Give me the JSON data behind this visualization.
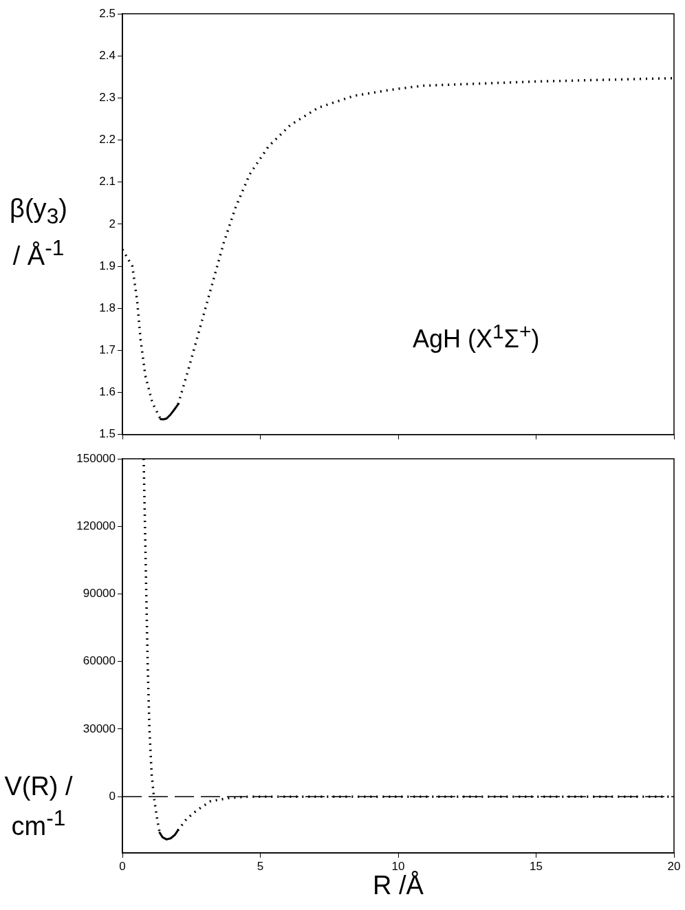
{
  "chart_data": [
    {
      "type": "line",
      "ylabel": "β(y$_{3}$) / Å$^{-1}$",
      "xlim": [
        0,
        20
      ],
      "xticks": [
        0,
        5,
        10,
        15,
        20
      ],
      "ylim": [
        1.5,
        2.5
      ],
      "yticks": [
        1.5,
        1.6,
        1.7,
        1.8,
        1.9,
        2,
        2.1,
        2.2,
        2.3,
        2.4,
        2.5
      ],
      "tick_labels": "y",
      "annotations": [
        "AgH (X$^{1}$Σ$^{+}$)"
      ],
      "series": [
        {
          "color": "#000000",
          "line_style": "dotted",
          "x": [
            0,
            0.36,
            0.53,
            0.66,
            0.83,
            1.09,
            1.38
          ],
          "values": [
            1.94,
            1.9,
            1.82,
            1.725,
            1.64,
            1.575,
            1.537
          ]
        },
        {
          "color": "#000000",
          "line_style": "dotted",
          "x": [
            2.02,
            2.38,
            2.81,
            3.24,
            3.67,
            4.1,
            4.61,
            5.3,
            6.08,
            7.11,
            8.4,
            9.69,
            10.89,
            15,
            20
          ],
          "values": [
            1.572,
            1.652,
            1.753,
            1.854,
            1.955,
            2.039,
            2.118,
            2.185,
            2.235,
            2.277,
            2.305,
            2.319,
            2.329,
            2.339,
            2.347
          ]
        },
        {
          "color": "#000000",
          "line_style": "solid",
          "x": [
            1.38,
            1.48,
            1.6,
            1.75,
            1.9,
            2.02
          ],
          "values": [
            1.537,
            1.536,
            1.538,
            1.548,
            1.561,
            1.572
          ]
        }
      ]
    },
    {
      "type": "line",
      "xlabel": "R /Å",
      "ylabel": "V(R) / cm$^{-1}$",
      "xlim": [
        0,
        20
      ],
      "xticks": [
        0,
        5,
        10,
        15,
        20
      ],
      "ylim": [
        -25000,
        150000
      ],
      "yticks": [
        0,
        30000,
        60000,
        90000,
        120000,
        150000
      ],
      "ref_lines": [
        {
          "axis": "y",
          "value": 0,
          "line_style": "dashed",
          "color": "#000000"
        }
      ],
      "series": [
        {
          "color": "#000000",
          "line_style": "dotted",
          "x": [
            0.77,
            0.82,
            0.87,
            0.92,
            0.98,
            1.06,
            1.14,
            1.26,
            1.35
          ],
          "values": [
            150000,
            119000,
            87000,
            57000,
            30000,
            10000,
            0,
            -10000,
            -16000
          ]
        },
        {
          "color": "#000000",
          "line_style": "dotted",
          "x": [
            2.01,
            2.32,
            2.71,
            3.2,
            3.9,
            4.6,
            10,
            15,
            20
          ],
          "values": [
            -15000,
            -10000,
            -6000,
            -2000,
            -600,
            0,
            0,
            0,
            0
          ]
        },
        {
          "color": "#000000",
          "line_style": "solid",
          "x": [
            1.35,
            1.45,
            1.6,
            1.75,
            1.9,
            2.01
          ],
          "values": [
            -16000,
            -18000,
            -19000,
            -18500,
            -17000,
            -15000
          ]
        }
      ]
    }
  ]
}
